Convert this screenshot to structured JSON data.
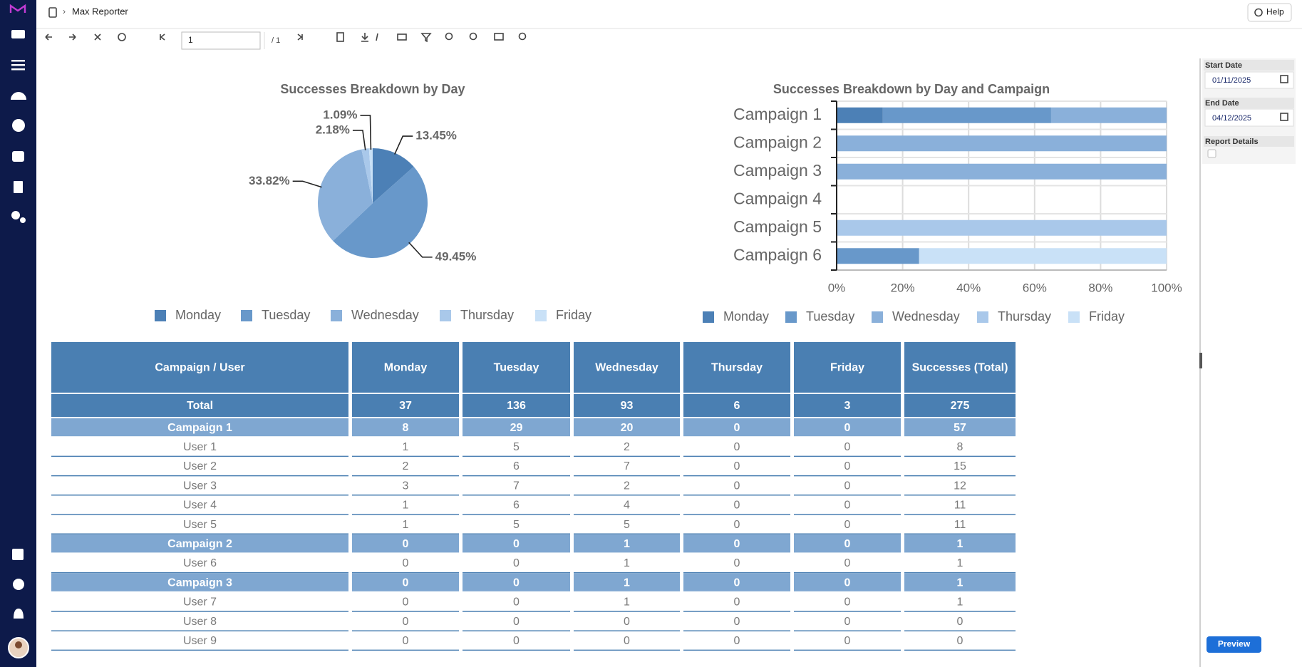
{
  "header": {
    "title": "Max Reporter",
    "help": "Help"
  },
  "toolbar": {
    "page": "1",
    "page_count": "/ 1"
  },
  "parameters": {
    "start_label": "Start Date",
    "start_value": "01/11/2025",
    "end_label": "End Date",
    "end_value": "04/12/2025",
    "details_label": "Report Details",
    "preview": "Preview"
  },
  "chart_data": [
    {
      "type": "pie",
      "title": "Successes Breakdown by Day",
      "categories": [
        "Monday",
        "Tuesday",
        "Wednesday",
        "Thursday",
        "Friday"
      ],
      "values": [
        13.45,
        49.45,
        33.82,
        2.18,
        1.09
      ],
      "value_labels": [
        "13.45%",
        "49.45%",
        "33.82%",
        "2.18%",
        "1.09%"
      ],
      "colors": [
        "#4c80b6",
        "#6898ca",
        "#8ab0da",
        "#a9c8ea",
        "#c9e1f7"
      ],
      "legend": "bottom"
    },
    {
      "type": "bar",
      "orientation": "horizontal",
      "stacked": true,
      "title": "Successes Breakdown by Day and Campaign",
      "categories": [
        "Campaign 1",
        "Campaign 2",
        "Campaign 3",
        "Campaign 4",
        "Campaign 5",
        "Campaign 6"
      ],
      "series": [
        {
          "name": "Monday",
          "color": "#4c80b6",
          "values": [
            14,
            0,
            0,
            0,
            0,
            0
          ]
        },
        {
          "name": "Tuesday",
          "color": "#6898ca",
          "values": [
            51,
            0,
            0,
            0,
            0,
            25
          ]
        },
        {
          "name": "Wednesday",
          "color": "#8ab0da",
          "values": [
            35,
            100,
            100,
            0,
            0,
            0
          ]
        },
        {
          "name": "Thursday",
          "color": "#a9c8ea",
          "values": [
            0,
            0,
            0,
            0,
            100,
            0
          ]
        },
        {
          "name": "Friday",
          "color": "#c9e1f7",
          "values": [
            0,
            0,
            0,
            0,
            0,
            75
          ]
        }
      ],
      "xlim": [
        0,
        100
      ],
      "xticks": [
        {
          "value": 0,
          "label": "0%"
        },
        {
          "value": 20,
          "label": "20%"
        },
        {
          "value": 40,
          "label": "40%"
        },
        {
          "value": 60,
          "label": "60%"
        },
        {
          "value": 80,
          "label": "80%"
        },
        {
          "value": 100,
          "label": "100%"
        }
      ],
      "grid": true,
      "legend": "bottom"
    }
  ],
  "table": {
    "header": [
      "Campaign / User",
      "Monday",
      "Tuesday",
      "Wednesday",
      "Thursday",
      "Friday",
      "Successes (Total)"
    ],
    "total": [
      "Total",
      37,
      136,
      93,
      6,
      3,
      275
    ],
    "groups": [
      {
        "row": [
          "Campaign 1",
          8,
          29,
          20,
          0,
          0,
          57
        ],
        "users": [
          [
            "User 1",
            1,
            5,
            2,
            0,
            0,
            8
          ],
          [
            "User 2",
            2,
            6,
            7,
            0,
            0,
            15
          ],
          [
            "User 3",
            3,
            7,
            2,
            0,
            0,
            12
          ],
          [
            "User 4",
            1,
            6,
            4,
            0,
            0,
            11
          ],
          [
            "User 5",
            1,
            5,
            5,
            0,
            0,
            11
          ]
        ]
      },
      {
        "row": [
          "Campaign 2",
          0,
          0,
          1,
          0,
          0,
          1
        ],
        "users": [
          [
            "User 6",
            0,
            0,
            1,
            0,
            0,
            1
          ]
        ]
      },
      {
        "row": [
          "Campaign 3",
          0,
          0,
          1,
          0,
          0,
          1
        ],
        "users": [
          [
            "User 7",
            0,
            0,
            1,
            0,
            0,
            1
          ],
          [
            "User 8",
            0,
            0,
            0,
            0,
            0,
            0
          ],
          [
            "User 9",
            0,
            0,
            0,
            0,
            0,
            0
          ]
        ]
      }
    ]
  }
}
